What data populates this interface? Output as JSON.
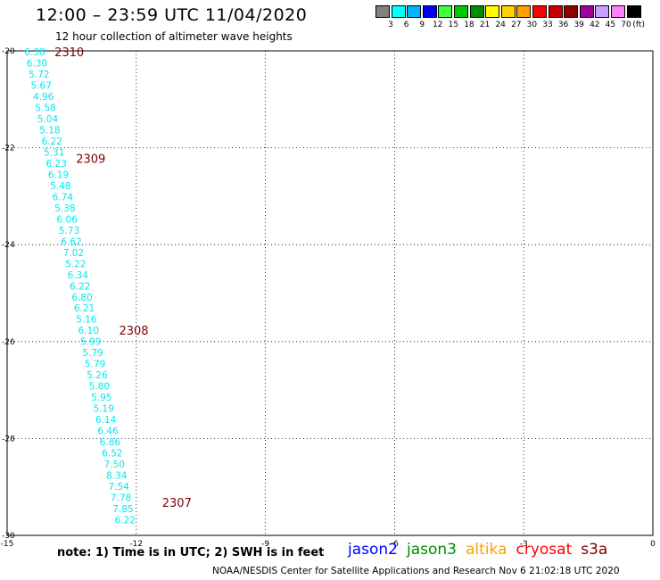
{
  "header": {
    "title": "12:00 – 23:59 UTC 11/04/2020",
    "subtitle": "12 hour collection of altimeter wave heights"
  },
  "color_scale": {
    "unit": "(ft)",
    "bins": [
      {
        "label": "3",
        "color": "#808080"
      },
      {
        "label": "6",
        "color": "#00ffff"
      },
      {
        "label": "9",
        "color": "#00b4ff"
      },
      {
        "label": "12",
        "color": "#0000ff"
      },
      {
        "label": "15",
        "color": "#40ff40"
      },
      {
        "label": "18",
        "color": "#00c800"
      },
      {
        "label": "21",
        "color": "#008c00"
      },
      {
        "label": "24",
        "color": "#ffff00"
      },
      {
        "label": "27",
        "color": "#ffd200"
      },
      {
        "label": "30",
        "color": "#ffa000"
      },
      {
        "label": "33",
        "color": "#ff0000"
      },
      {
        "label": "36",
        "color": "#c80000"
      },
      {
        "label": "39",
        "color": "#8c0000"
      },
      {
        "label": "42",
        "color": "#a000a0"
      },
      {
        "label": "45",
        "color": "#c8a0ff"
      },
      {
        "label": "70",
        "color": "#ff80ff"
      },
      {
        "label": "",
        "color": "#000000"
      }
    ]
  },
  "chart_data": {
    "type": "scatter",
    "xlim": [
      -15,
      0
    ],
    "ylim": [
      -30,
      -20
    ],
    "x_ticks": [
      -15,
      -12,
      -9,
      -6,
      -3,
      0
    ],
    "y_ticks": [
      -20,
      -22,
      -24,
      -26,
      -28,
      -30
    ],
    "grid": "dotted",
    "value_color": "#00e8f0",
    "points": [
      {
        "lon": -14.6,
        "lat": -20.0,
        "swh": "6.38"
      },
      {
        "lon": -14.55,
        "lat": -20.23,
        "swh": "6.30"
      },
      {
        "lon": -14.5,
        "lat": -20.46,
        "swh": "5.72"
      },
      {
        "lon": -14.45,
        "lat": -20.69,
        "swh": "5.67"
      },
      {
        "lon": -14.4,
        "lat": -20.92,
        "swh": "4.96"
      },
      {
        "lon": -14.35,
        "lat": -21.15,
        "swh": "5.58"
      },
      {
        "lon": -14.3,
        "lat": -21.38,
        "swh": "5.04"
      },
      {
        "lon": -14.25,
        "lat": -21.61,
        "swh": "5.18"
      },
      {
        "lon": -14.2,
        "lat": -21.84,
        "swh": "6.22"
      },
      {
        "lon": -14.15,
        "lat": -22.07,
        "swh": "5.31"
      },
      {
        "lon": -14.1,
        "lat": -22.3,
        "swh": "6.23"
      },
      {
        "lon": -14.05,
        "lat": -22.53,
        "swh": "6.19"
      },
      {
        "lon": -14.0,
        "lat": -22.76,
        "swh": "5.48"
      },
      {
        "lon": -13.95,
        "lat": -22.99,
        "swh": "6.74"
      },
      {
        "lon": -13.9,
        "lat": -23.22,
        "swh": "5.38"
      },
      {
        "lon": -13.85,
        "lat": -23.45,
        "swh": "6.06"
      },
      {
        "lon": -13.8,
        "lat": -23.68,
        "swh": "5.73"
      },
      {
        "lon": -13.75,
        "lat": -23.91,
        "swh": "6.62"
      },
      {
        "lon": -13.7,
        "lat": -24.14,
        "swh": "7.02"
      },
      {
        "lon": -13.65,
        "lat": -24.37,
        "swh": "5.22"
      },
      {
        "lon": -13.6,
        "lat": -24.6,
        "swh": "6.34"
      },
      {
        "lon": -13.55,
        "lat": -24.83,
        "swh": "6.22"
      },
      {
        "lon": -13.5,
        "lat": -25.06,
        "swh": "6.80"
      },
      {
        "lon": -13.45,
        "lat": -25.29,
        "swh": "6.21"
      },
      {
        "lon": -13.4,
        "lat": -25.52,
        "swh": "5.16"
      },
      {
        "lon": -13.35,
        "lat": -25.75,
        "swh": "6.10"
      },
      {
        "lon": -13.3,
        "lat": -25.98,
        "swh": "5.99"
      },
      {
        "lon": -13.25,
        "lat": -26.21,
        "swh": "5.79"
      },
      {
        "lon": -13.2,
        "lat": -26.44,
        "swh": "5.79"
      },
      {
        "lon": -13.15,
        "lat": -26.67,
        "swh": "5.26"
      },
      {
        "lon": -13.1,
        "lat": -26.9,
        "swh": "5.80"
      },
      {
        "lon": -13.05,
        "lat": -27.13,
        "swh": "5.95"
      },
      {
        "lon": -13.0,
        "lat": -27.36,
        "swh": "5.19"
      },
      {
        "lon": -12.95,
        "lat": -27.59,
        "swh": "6.14"
      },
      {
        "lon": -12.9,
        "lat": -27.82,
        "swh": "6.46"
      },
      {
        "lon": -12.85,
        "lat": -28.05,
        "swh": "6.86"
      },
      {
        "lon": -12.8,
        "lat": -28.28,
        "swh": "6.52"
      },
      {
        "lon": -12.75,
        "lat": -28.51,
        "swh": "7.50"
      },
      {
        "lon": -12.7,
        "lat": -28.74,
        "swh": "8.34"
      },
      {
        "lon": -12.65,
        "lat": -28.97,
        "swh": "7.54"
      },
      {
        "lon": -12.6,
        "lat": -29.2,
        "swh": "7.78"
      },
      {
        "lon": -12.55,
        "lat": -29.43,
        "swh": "7.85"
      },
      {
        "lon": -12.5,
        "lat": -29.66,
        "swh": "6.22"
      }
    ],
    "pass_labels": [
      {
        "lon": -13.9,
        "lat": -20.0,
        "label": "2310"
      },
      {
        "lon": -13.4,
        "lat": -22.2,
        "label": "2309"
      },
      {
        "lon": -12.4,
        "lat": -25.75,
        "label": "2308"
      },
      {
        "lon": -11.4,
        "lat": -29.3,
        "label": "2307"
      }
    ],
    "pass_color": "#800000"
  },
  "footer": {
    "note": "note: 1) Time is in UTC; 2) SWH is in feet",
    "satellites": [
      {
        "name": "jason2",
        "color": "#0000ff"
      },
      {
        "name": "jason3",
        "color": "#008c00"
      },
      {
        "name": "altika",
        "color": "#ffa000"
      },
      {
        "name": "cryosat",
        "color": "#ff0000"
      },
      {
        "name": "s3a",
        "color": "#800000"
      }
    ],
    "credit": "NOAA/NESDIS Center for Satellite Applications and Research     Nov  6 21:02:18 UTC 2020"
  }
}
